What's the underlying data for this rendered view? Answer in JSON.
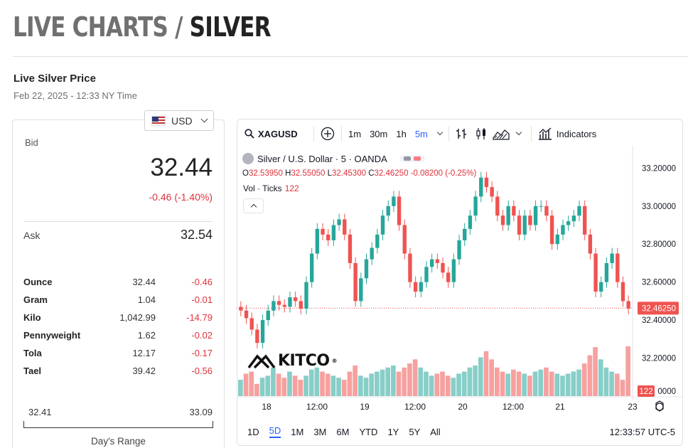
{
  "page": {
    "title_prefix": "LIVE CHARTS",
    "title_sep": "/",
    "title_metal": "SILVER"
  },
  "section": {
    "title": "Live Silver Price",
    "date": "Feb 22, 2025 - 12:33 NY Time"
  },
  "currency": {
    "selected": "USD",
    "flag_icon": "us-flag-icon"
  },
  "bid": {
    "label": "Bid",
    "value": "32.44",
    "change": "-0.46 (-1.40%)"
  },
  "ask": {
    "label": "Ask",
    "value": "32.54"
  },
  "units": [
    {
      "name": "Ounce",
      "price": "32.44",
      "change": "-0.46"
    },
    {
      "name": "Gram",
      "price": "1.04",
      "change": "-0.01"
    },
    {
      "name": "Kilo",
      "price": "1,042.99",
      "change": "-14.79"
    },
    {
      "name": "Pennyweight",
      "price": "1.62",
      "change": "-0.02"
    },
    {
      "name": "Tola",
      "price": "12.17",
      "change": "-0.17"
    },
    {
      "name": "Tael",
      "price": "39.42",
      "change": "-0.56"
    }
  ],
  "day_range": {
    "low": "32.41",
    "high": "33.09",
    "label": "Day's Range"
  },
  "toolbar": {
    "symbol": "XAGUSD",
    "intervals": [
      "1m",
      "30m",
      "1h",
      "5m"
    ],
    "active_interval": "5m",
    "indicators_label": "Indicators"
  },
  "legend": {
    "title": "Silver / U.S. Dollar · 5 · OANDA",
    "o_label": "O",
    "o": "32.53950",
    "h_label": "H",
    "h": "32.55050",
    "l_label": "L",
    "l": "32.45300",
    "c_label": "C",
    "c": "32.46250",
    "chg": "-0.08200 (-0.25%)",
    "vol_label": "Vol · Ticks",
    "vol": "122"
  },
  "logo": {
    "text": "KITCO",
    "mark": "®"
  },
  "periods": [
    "1D",
    "5D",
    "1M",
    "3M",
    "6M",
    "YTD",
    "1Y",
    "5Y",
    "All"
  ],
  "active_period": "5D",
  "clock": "12:33:57 UTC-5",
  "colors": {
    "up": "#26a69a",
    "down": "#ef5350",
    "accent": "#2962ff",
    "negative": "#e0313b"
  },
  "chart_data": {
    "type": "line",
    "series": [
      {
        "values": [
          32.45,
          32.41,
          32.35,
          32.28,
          32.4,
          32.45,
          32.5,
          32.48,
          32.47,
          32.52,
          32.5,
          32.46,
          32.6,
          32.75,
          32.88,
          32.85,
          32.82,
          32.9,
          32.93,
          32.85,
          32.7,
          32.5,
          32.62,
          32.72,
          32.78,
          32.85,
          32.95,
          33.0,
          33.05,
          32.9,
          32.75,
          32.6,
          32.55,
          32.6,
          32.68,
          32.72,
          32.7,
          32.65,
          32.6,
          32.72,
          32.82,
          32.88,
          32.95,
          33.05,
          33.15,
          33.1,
          33.05,
          32.95,
          32.9,
          33.0,
          32.95,
          32.85,
          32.95,
          32.9,
          33.0,
          33.0,
          32.95,
          32.8,
          32.85,
          32.9,
          32.92,
          32.95,
          33.0,
          32.85,
          32.75,
          32.55,
          32.6,
          32.7,
          32.75,
          32.6,
          32.5,
          32.46
        ]
      }
    ],
    "volume": [
      40,
      55,
      60,
      30,
      45,
      50,
      70,
      55,
      45,
      60,
      50,
      40,
      50,
      65,
      70,
      60,
      55,
      50,
      45,
      40,
      60,
      75,
      50,
      45,
      55,
      60,
      65,
      70,
      75,
      60,
      70,
      80,
      90,
      70,
      60,
      50,
      55,
      60,
      50,
      45,
      55,
      60,
      70,
      75,
      95,
      110,
      90,
      70,
      60,
      55,
      65,
      60,
      55,
      50,
      60,
      65,
      70,
      60,
      55,
      50,
      55,
      60,
      65,
      80,
      100,
      120,
      90,
      70,
      60,
      55,
      40,
      122
    ],
    "y_ticks": [
      "33.20000",
      "33.00000",
      "32.80000",
      "32.60000",
      "32.40000",
      "32.20000"
    ],
    "y_range": [
      32.0,
      33.25
    ],
    "x_ticks": [
      "18",
      "12:00",
      "19",
      "12:00",
      "20",
      "12:00",
      "21",
      "23"
    ],
    "last_price_label": "32.46250",
    "last_volume_label": "122",
    "volume_axis_partial_label": "0000"
  }
}
